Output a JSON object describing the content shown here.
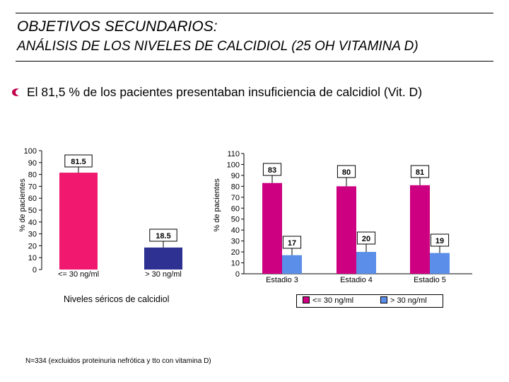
{
  "header": {
    "title": "OBJETIVOS SECUNDARIOS:",
    "subtitle": "ANÁLISIS DE LOS NIVELES DE CALCIDIOL (25 OH VITAMINA D)"
  },
  "bullet": {
    "text": "El 81,5 % de los pacientes presentaban insuficiencia de calcidiol (Vit. D)",
    "icon": "bullet-icon",
    "color": "#c0004a"
  },
  "footnote": "N=334 (excluidos proteinuria nefrótica y tto con vitamina D)",
  "colors": {
    "low": "#f0186f",
    "high": "#2e3192",
    "stage_low": "#cc0080",
    "stage_high": "#5a8ee8"
  },
  "chart_data": [
    {
      "type": "bar",
      "title": "",
      "xlabel": "Niveles séricos de calcidiol",
      "ylabel": "% de pacientes",
      "ylim": [
        0,
        100
      ],
      "yticks": [
        0,
        10,
        20,
        30,
        40,
        50,
        60,
        70,
        80,
        90,
        100
      ],
      "categories": [
        "<= 30 ng/ml",
        "> 30 ng/ml"
      ],
      "values": [
        81.5,
        18.5
      ],
      "labels": [
        "81.5",
        "18.5"
      ]
    },
    {
      "type": "bar",
      "title": "",
      "xlabel": "",
      "ylabel": "% de pacientes",
      "ylim": [
        0,
        110
      ],
      "yticks": [
        0,
        10,
        20,
        30,
        40,
        50,
        60,
        70,
        80,
        90,
        100,
        110
      ],
      "categories": [
        "Estadio 3",
        "Estadio 4",
        "Estadio 5"
      ],
      "series": [
        {
          "name": "<= 30 ng/ml",
          "values": [
            83,
            80,
            81
          ]
        },
        {
          "name": "> 30 ng/ml",
          "values": [
            17,
            20,
            19
          ]
        }
      ],
      "legend": "bottom"
    }
  ]
}
